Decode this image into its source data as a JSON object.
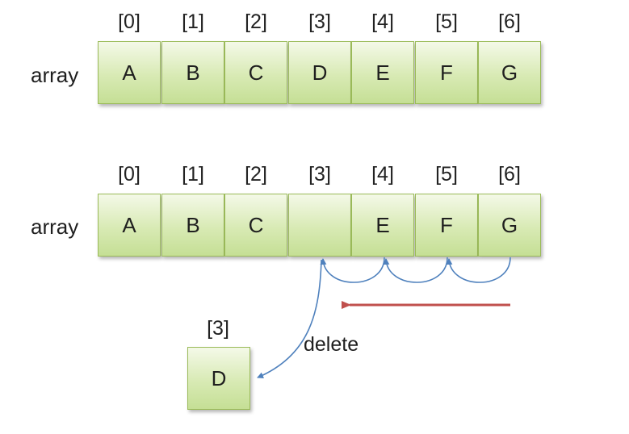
{
  "indices": [
    "[0]",
    "[1]",
    "[2]",
    "[3]",
    "[4]",
    "[5]",
    "[6]"
  ],
  "top_array": {
    "label": "array",
    "cells": [
      "A",
      "B",
      "C",
      "D",
      "E",
      "F",
      "G"
    ]
  },
  "bottom_array": {
    "label": "array",
    "cells": [
      "A",
      "B",
      "C",
      "",
      "E",
      "F",
      "G"
    ]
  },
  "deleted": {
    "index": "[3]",
    "value": "D",
    "action_label": "delete"
  },
  "colors": {
    "cell_border": "#9bbb59",
    "shift_arrow": "#4f81bd",
    "direction_arrow": "#c0504d"
  }
}
